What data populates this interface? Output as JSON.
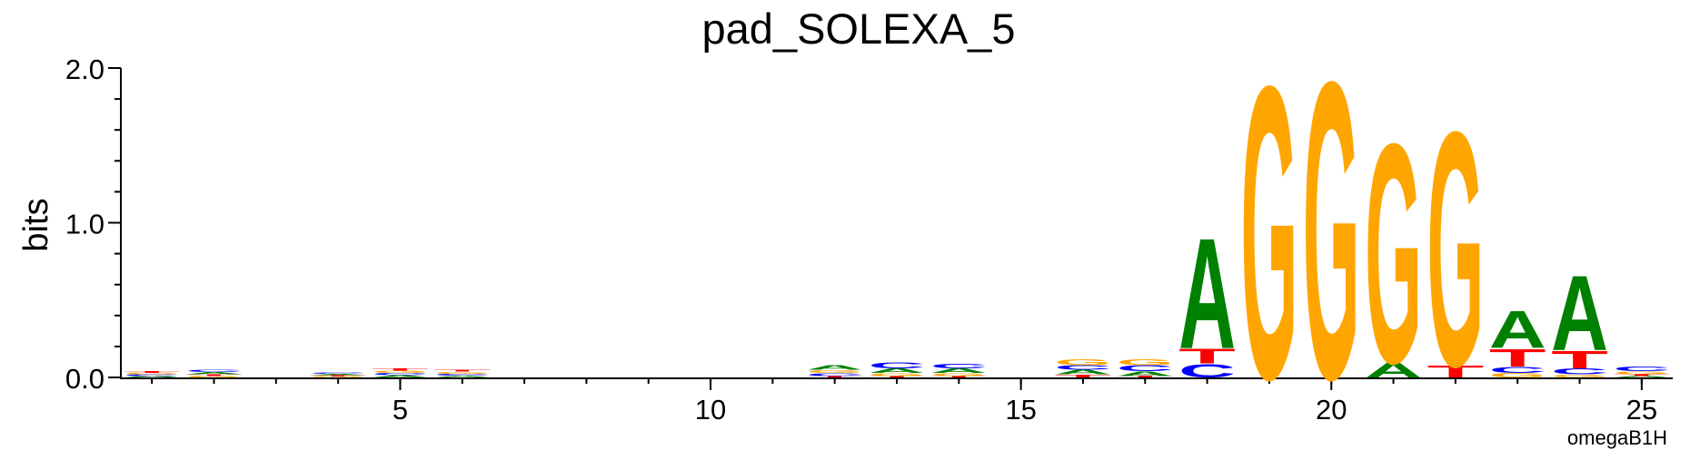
{
  "chart_data": {
    "type": "logo",
    "title": "pad_SOLEXA_5",
    "ylabel": "bits",
    "footnote": "omegaB1H",
    "x": [
      1,
      2,
      3,
      4,
      5,
      6,
      7,
      8,
      9,
      10,
      11,
      12,
      13,
      14,
      15,
      16,
      17,
      18,
      19,
      20,
      21,
      22,
      23,
      24,
      25
    ],
    "series": [
      {
        "name": "A",
        "color": "#008000",
        "values": [
          0.01,
          0.015,
          0,
          0.008,
          0.015,
          0.012,
          0,
          0,
          0,
          0,
          0,
          0.03,
          0.03,
          0.03,
          0,
          0.03,
          0.03,
          0.74,
          0,
          0,
          0.1,
          0,
          0.25,
          0.5,
          0.01
        ]
      },
      {
        "name": "C",
        "color": "#0000ff",
        "values": [
          0.01,
          0.015,
          0,
          0.008,
          0.015,
          0.012,
          0,
          0,
          0,
          0,
          0,
          0.02,
          0.04,
          0.03,
          0,
          0.03,
          0.04,
          0.09,
          0,
          0,
          0,
          0,
          0.04,
          0.04,
          0.03
        ]
      },
      {
        "name": "G",
        "color": "#ffa500",
        "values": [
          0.01,
          0.01,
          0,
          0.007,
          0.015,
          0.013,
          0,
          0,
          0,
          0,
          0,
          0.02,
          0.02,
          0.02,
          0,
          0.04,
          0.04,
          0,
          1.96,
          1.99,
          1.47,
          1.57,
          0.03,
          0.02,
          0.02
        ]
      },
      {
        "name": "T",
        "color": "#ff0000",
        "values": [
          0.01,
          0.01,
          0,
          0.007,
          0.015,
          0.013,
          0,
          0,
          0,
          0,
          0,
          0.01,
          0.01,
          0.01,
          0,
          0.02,
          0.01,
          0.1,
          0,
          0,
          0,
          0.08,
          0.12,
          0.12,
          0.01
        ]
      }
    ],
    "xlim": [
      0.5,
      25.5
    ],
    "xticks": [
      5,
      10,
      15,
      20,
      25
    ],
    "ylim": [
      0,
      2
    ],
    "yticks": [
      {
        "value": 0,
        "label": "0.0"
      },
      {
        "value": 1,
        "label": "1.0"
      },
      {
        "value": 2,
        "label": "2.0"
      }
    ]
  }
}
